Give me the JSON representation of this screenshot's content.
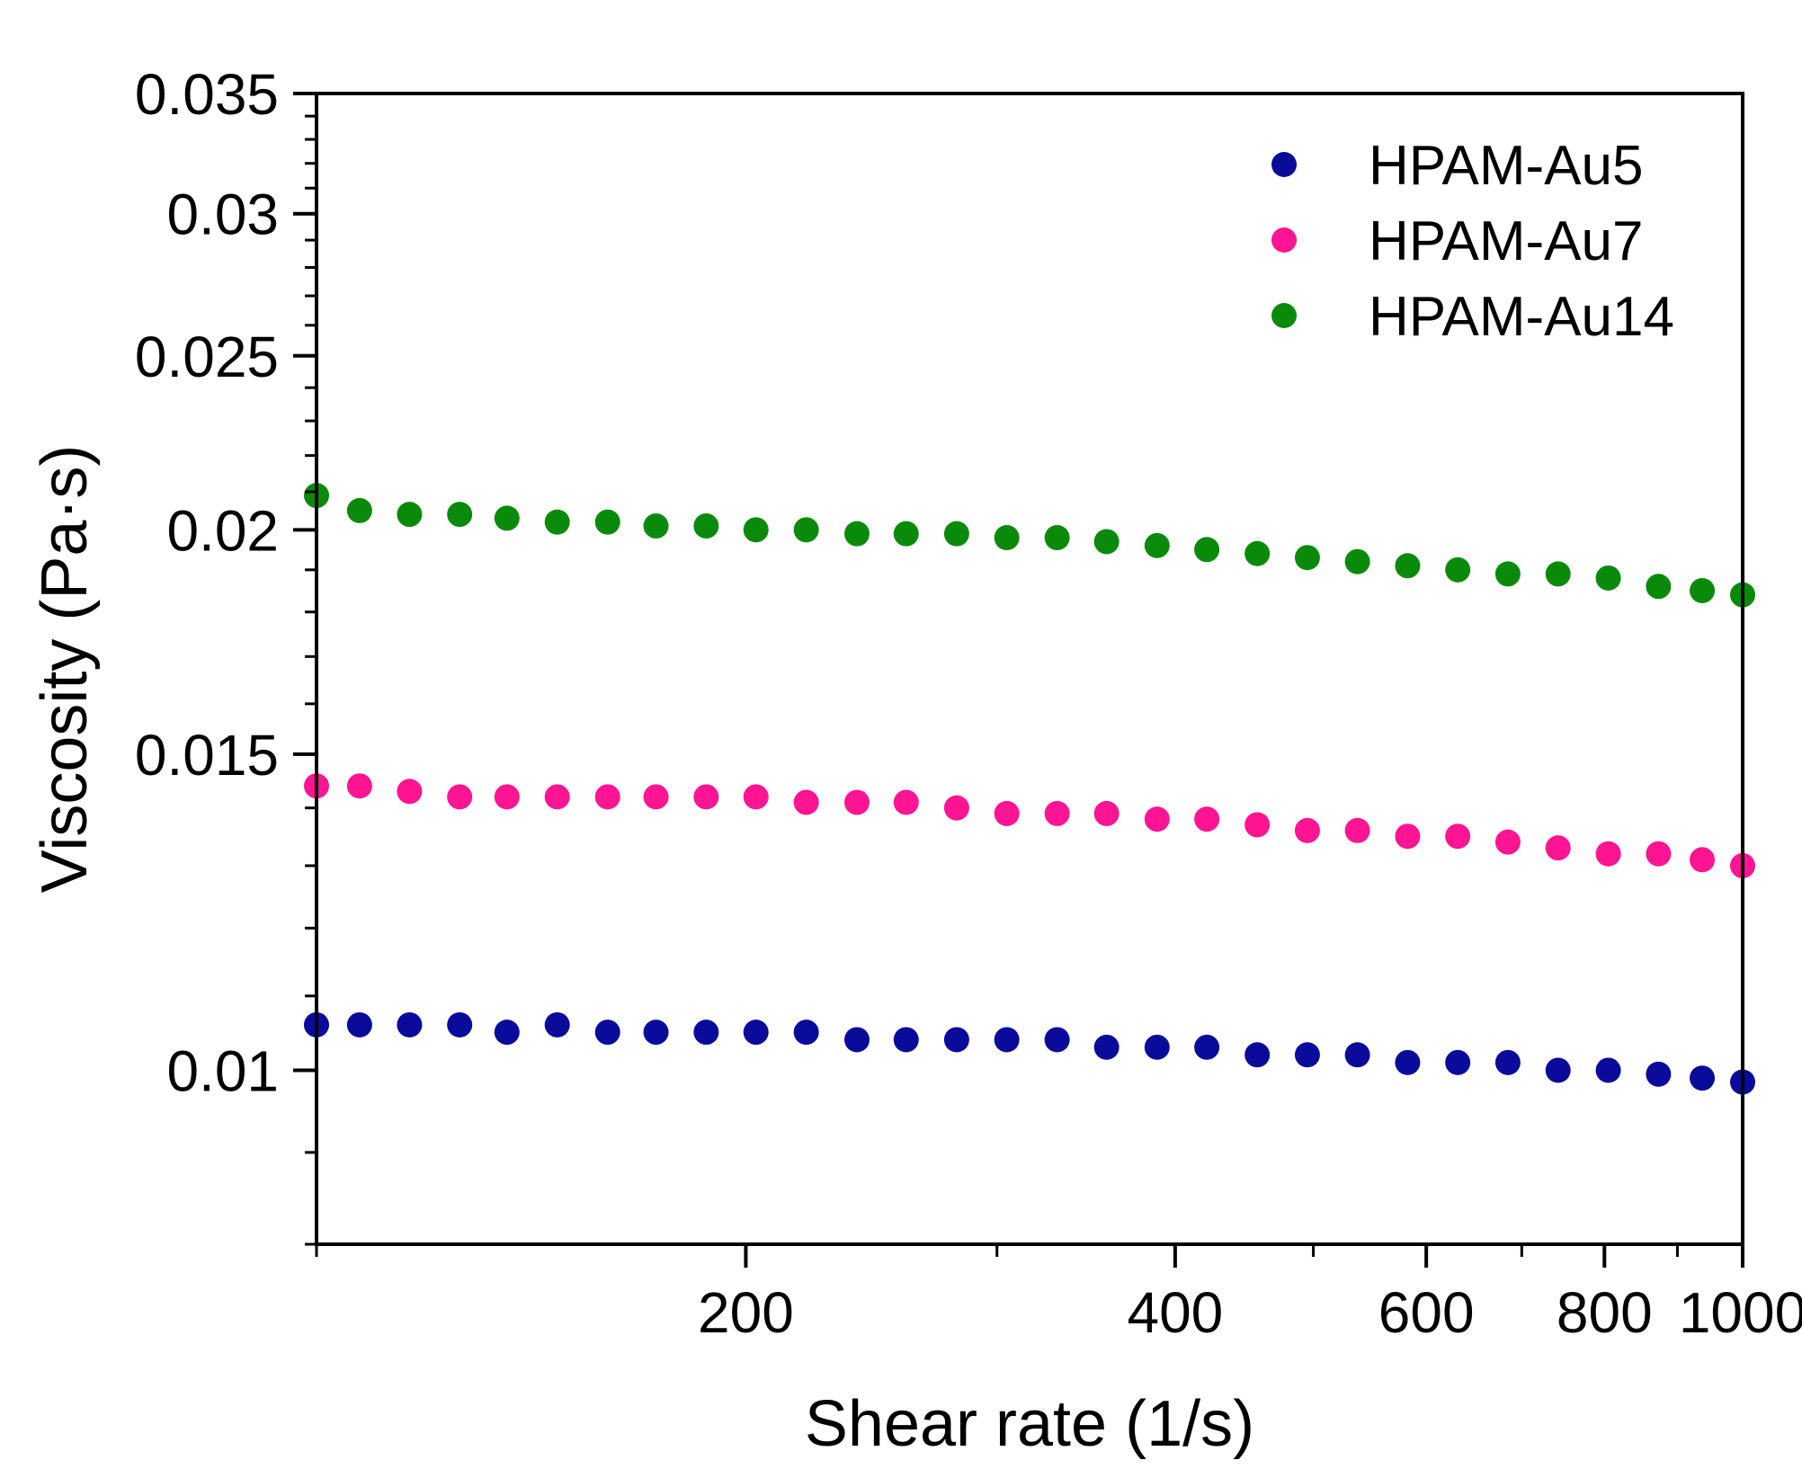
{
  "chart_data": {
    "type": "scatter",
    "title": "",
    "xlabel": "Shear rate (1/s)",
    "ylabel": "Viscosity (Pa·s)",
    "x_scale": "log",
    "y_scale": "log",
    "xlim": [
      100,
      1000
    ],
    "ylim": [
      0.008,
      0.035
    ],
    "x_ticks": [
      200,
      400,
      600,
      800,
      1000
    ],
    "x_tick_labels": [
      "200",
      "400",
      "600",
      "800",
      "1000"
    ],
    "y_ticks": [
      0.01,
      0.015,
      0.02,
      0.025,
      0.03,
      0.035
    ],
    "y_tick_labels": [
      "0.01",
      "0.015",
      "0.02",
      "0.025",
      "0.03",
      "0.035"
    ],
    "legend_position": "top-right",
    "grid": false,
    "x": [
      100,
      107.2,
      116.2,
      126.0,
      136.0,
      147.5,
      160.0,
      173.0,
      187.6,
      203.3,
      220.5,
      239.3,
      259.1,
      281.1,
      304.8,
      330.6,
      358.1,
      388.5,
      421.0,
      456.7,
      495.2,
      536.9,
      582.2,
      631.3,
      684.5,
      742.3,
      805.0,
      872.9,
      936.8,
      1000
    ],
    "series": [
      {
        "name": "HPAM-Au5",
        "color": "#0a0a9b",
        "values": [
          0.0106,
          0.0106,
          0.0106,
          0.0106,
          0.0105,
          0.0106,
          0.0105,
          0.0105,
          0.0105,
          0.0105,
          0.0105,
          0.0104,
          0.0104,
          0.0104,
          0.0104,
          0.0104,
          0.0103,
          0.0103,
          0.0103,
          0.0102,
          0.0102,
          0.0102,
          0.0101,
          0.0101,
          0.0101,
          0.01,
          0.01,
          0.00995,
          0.0099,
          0.00985
        ]
      },
      {
        "name": "HPAM-Au7",
        "color": "#ff1493",
        "values": [
          0.0144,
          0.0144,
          0.0143,
          0.0142,
          0.0142,
          0.0142,
          0.0142,
          0.0142,
          0.0142,
          0.0142,
          0.0141,
          0.0141,
          0.0141,
          0.014,
          0.0139,
          0.0139,
          0.0139,
          0.0138,
          0.0138,
          0.0137,
          0.0136,
          0.0136,
          0.0135,
          0.0135,
          0.0134,
          0.0133,
          0.0132,
          0.0132,
          0.0131,
          0.013
        ]
      },
      {
        "name": "HPAM-Au14",
        "color": "#0a8a0a",
        "values": [
          0.0209,
          0.0205,
          0.0204,
          0.0204,
          0.0203,
          0.0202,
          0.0202,
          0.0201,
          0.0201,
          0.02,
          0.02,
          0.0199,
          0.0199,
          0.0199,
          0.0198,
          0.0198,
          0.0197,
          0.0196,
          0.0195,
          0.0194,
          0.0193,
          0.0192,
          0.0191,
          0.019,
          0.0189,
          0.0189,
          0.0188,
          0.0186,
          0.0185,
          0.0184
        ]
      }
    ]
  }
}
